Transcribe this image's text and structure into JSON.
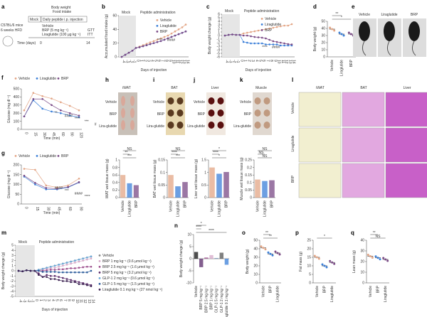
{
  "colors": {
    "vehicle": "#e3a585",
    "liraglutide": "#3b7fd8",
    "brp": "#7a4a86",
    "mock_shade": "#e6e6e6"
  },
  "panel_a": {
    "letter": "a",
    "mouse": "C57BL/6 mice",
    "diet": "6 weeks HFD",
    "measures": "Body weight",
    "measures2": "Food intake",
    "mock": "Mock",
    "injection": "Daily peptide i.p. injection",
    "g1": "Vehicle",
    "g2": "BRP (5 mg kg⁻¹)",
    "g3": "Liraglutide (100 µg kg⁻¹)",
    "tests1": "GTT",
    "tests2": "ITT",
    "time_label": "Time (days)",
    "t0": "0",
    "t14": "14"
  },
  "panel_e": {
    "letter": "e",
    "labels": [
      "Vehicle",
      "Liraglutide",
      "BRP"
    ]
  },
  "panel_h": {
    "letter": "h",
    "title": "iWAT",
    "rows": [
      "Vehicle",
      "BRP",
      "Lira-glutide"
    ]
  },
  "panel_i": {
    "letter": "i",
    "title": "BAT",
    "rows": [
      "Vehicle",
      "BRP",
      "Lira-glutide"
    ]
  },
  "panel_j": {
    "letter": "j",
    "title": "Liver",
    "rows": [
      "Vehicle",
      "BRP",
      "Lira-glutide"
    ]
  },
  "panel_k": {
    "letter": "k",
    "title": "Muscle",
    "rows": [
      "Vehicle",
      "BRP",
      "Lira-glutide"
    ]
  },
  "panel_l": {
    "letter": "l",
    "cols": [
      "iWAT",
      "BAT",
      "Liver"
    ],
    "rows": [
      "Vehicle",
      "Liraglutide",
      "BRP"
    ]
  },
  "chart_data": [
    {
      "id": "b",
      "letter": "b",
      "type": "line",
      "xlabel": "Days of injection",
      "ylabel": "Accumulated food intake (g)",
      "ylim": [
        0,
        60
      ],
      "yticks": [
        0,
        20,
        40,
        60
      ],
      "x": [
        -4,
        -3,
        -2,
        -1,
        0,
        1,
        2,
        3,
        4,
        5,
        6,
        7,
        8,
        9,
        10,
        11,
        12,
        13,
        14
      ],
      "mock_label": "Mock",
      "treat_label": "Peptide administration",
      "annotations": [
        "****",
        "####"
      ],
      "series": [
        {
          "name": "Vehicle",
          "key": "vehicle",
          "values": [
            0,
            3,
            6,
            9,
            13,
            15,
            17,
            19,
            21,
            23,
            25,
            27,
            29,
            31,
            34,
            37,
            40,
            43,
            47
          ]
        },
        {
          "name": "Liraglutide",
          "key": "liraglutide",
          "values": [
            0,
            3,
            6,
            9,
            13,
            14,
            15.5,
            17,
            18.5,
            20,
            21.5,
            23,
            25,
            27,
            29,
            31,
            33,
            35,
            37
          ]
        },
        {
          "name": "BRP",
          "key": "brp",
          "values": [
            0,
            3,
            6,
            9,
            13,
            14,
            15.5,
            17,
            18.5,
            20,
            21.5,
            23,
            25,
            27,
            29,
            31,
            33,
            35,
            37
          ]
        }
      ]
    },
    {
      "id": "c",
      "letter": "c",
      "type": "line",
      "xlabel": "Days of injection",
      "ylabel": "Body weight change (g)",
      "ylim": [
        -6,
        6
      ],
      "yticks": [
        -6,
        -5,
        -4,
        -3,
        -2,
        -1,
        0,
        1,
        2,
        3,
        4,
        5,
        6
      ],
      "x": [
        -4,
        -3,
        -2,
        -1,
        0,
        1,
        2,
        3,
        4,
        5,
        6,
        7,
        8,
        9,
        10,
        11,
        12,
        13,
        14
      ],
      "mock_label": "Mock",
      "treat_label": "Peptide administration",
      "annotations": [
        "****",
        "####"
      ],
      "series": [
        {
          "name": "Vehicle",
          "key": "vehicle",
          "values": [
            0,
            0.2,
            0.3,
            0.2,
            0.2,
            0.6,
            0.8,
            1.0,
            1.2,
            1.4,
            1.6,
            1.8,
            2.0,
            2.2,
            2.4,
            2.6,
            2.8,
            2.8,
            3.2
          ]
        },
        {
          "name": "Liraglutide",
          "key": "liraglutide",
          "values": [
            0,
            0.2,
            0.3,
            0.2,
            0.2,
            -1.8,
            -2.0,
            -2.2,
            -2.2,
            -2.2,
            -2.2,
            -2.5,
            -2.5,
            -2.5,
            -2.5,
            -2.8,
            -2.8,
            -2.8,
            -2.8
          ]
        },
        {
          "name": "BRP",
          "key": "brp",
          "values": [
            0,
            0.2,
            0.3,
            0.2,
            0.2,
            0,
            0,
            -0.2,
            -0.4,
            -0.5,
            -0.6,
            -0.8,
            -1.2,
            -1.6,
            -1.8,
            -2.0,
            -2.2,
            -2.4,
            -2.5
          ]
        }
      ]
    },
    {
      "id": "d",
      "letter": "d",
      "type": "scatter",
      "ylabel": "Body weight (g)",
      "ylim": [
        0,
        50
      ],
      "yticks": [
        0,
        10,
        20,
        30,
        40,
        50
      ],
      "categories": [
        "Vehicle",
        "Liraglutide",
        "BRP"
      ],
      "keys": [
        "vehicle",
        "liraglutide",
        "brp"
      ],
      "values": [
        39,
        32,
        32
      ],
      "annotations": [
        "*",
        "**"
      ]
    },
    {
      "id": "f",
      "letter": "f",
      "type": "line",
      "xlabel": "Time (min)",
      "ylabel": "Glucose (mg dl⁻¹)",
      "ylim": [
        0,
        500
      ],
      "yticks": [
        0,
        100,
        200,
        300,
        400,
        500
      ],
      "x": [
        0,
        15,
        30,
        45,
        60,
        90,
        120
      ],
      "annotations": [
        "**",
        "####",
        "****",
        "***",
        "#"
      ],
      "series": [
        {
          "name": "Vehicle",
          "key": "vehicle",
          "values": [
            235,
            450,
            410,
            380,
            335,
            290,
            235
          ]
        },
        {
          "name": "Liraglutide",
          "key": "liraglutide",
          "values": [
            160,
            360,
            255,
            220,
            200,
            170,
            150
          ]
        },
        {
          "name": "BRP",
          "key": "brp",
          "values": [
            160,
            375,
            375,
            300,
            235,
            200,
            170
          ]
        }
      ]
    },
    {
      "id": "g",
      "letter": "g",
      "type": "line",
      "xlabel": "Time (min)",
      "ylabel": "Glucose (mg dl⁻¹)",
      "ylim": [
        0,
        200
      ],
      "yticks": [
        0,
        50,
        100,
        150,
        200
      ],
      "x": [
        0,
        15,
        30,
        45,
        60,
        90
      ],
      "annotations": [
        "####",
        "***",
        "####",
        "****"
      ],
      "series": [
        {
          "name": "Vehicle",
          "key": "vehicle",
          "values": [
            180,
            175,
            95,
            85,
            95,
            130
          ]
        },
        {
          "name": "Liraglutide",
          "key": "liraglutide",
          "values": [
            140,
            100,
            75,
            75,
            85,
            110
          ]
        },
        {
          "name": "BRP",
          "key": "brp",
          "values": [
            145,
            108,
            82,
            78,
            87,
            112
          ]
        }
      ]
    },
    {
      "id": "h",
      "type": "bar",
      "ylabel": "iWAT wet tissue mass (g)",
      "ylim": [
        0,
        1
      ],
      "yticks": [
        0,
        0.2,
        0.4,
        0.6,
        0.8,
        1.0
      ],
      "categories": [
        "Vehicle",
        "Liraglutide",
        "BRP"
      ],
      "keys": [
        "vehicle",
        "liraglutide",
        "brp"
      ],
      "values": [
        0.6,
        0.38,
        0.33
      ],
      "annotations": [
        "***",
        "**",
        "NS"
      ]
    },
    {
      "id": "i",
      "type": "bar",
      "ylabel": "BAT wet tissue mass (g)",
      "ylim": [
        0,
        0.15
      ],
      "yticks": [
        0,
        0.05,
        0.1,
        0.15
      ],
      "categories": [
        "Vehicle",
        "Liraglutide",
        "BRP"
      ],
      "keys": [
        "vehicle",
        "liraglutide",
        "brp"
      ],
      "values": [
        0.09,
        0.045,
        0.062
      ],
      "annotations": [
        "***",
        "****",
        "NS"
      ]
    },
    {
      "id": "j",
      "type": "bar",
      "ylabel": "Liver wet tissue mass (g)",
      "ylim": [
        0,
        1.5
      ],
      "yticks": [
        0,
        0.5,
        1.0,
        1.5
      ],
      "categories": [
        "Vehicle",
        "Liraglutide",
        "BRP"
      ],
      "keys": [
        "vehicle",
        "liraglutide",
        "brp"
      ],
      "values": [
        1.2,
        0.95,
        1.02
      ],
      "annotations": [
        "*",
        "****",
        "*"
      ]
    },
    {
      "id": "k",
      "type": "bar",
      "ylabel": "Muscle wet tissue mass (g)",
      "ylim": [
        0,
        0.25
      ],
      "yticks": [
        0,
        0.05,
        0.1,
        0.15,
        0.2,
        0.25
      ],
      "categories": [
        "Vehicle",
        "Liraglutide",
        "BRP"
      ],
      "keys": [
        "vehicle",
        "liraglutide",
        "brp"
      ],
      "values": [
        0.12,
        0.11,
        0.115
      ],
      "annotations": [
        "NS",
        "NS",
        "NS"
      ]
    },
    {
      "id": "m",
      "letter": "m",
      "type": "line",
      "xlabel": "Days of injection",
      "ylabel": "Body weight change (g)",
      "ylim": [
        -5,
        5
      ],
      "yticks": [
        -5,
        -4,
        -3,
        -2,
        -1,
        0,
        1,
        2,
        3,
        4,
        5
      ],
      "x": [
        -4,
        -3,
        -2,
        -1,
        0,
        1,
        2,
        3,
        4,
        5,
        6,
        7,
        8,
        9,
        10,
        11,
        12,
        13,
        14
      ],
      "mock_label": "Mock",
      "treat_label": "Peptide administration",
      "series": [
        {
          "name": "Vehicle",
          "color": "#888888",
          "values": [
            0,
            -0.1,
            0.1,
            0,
            0,
            0.2,
            0.4,
            0.6,
            0.8,
            1.0,
            1.2,
            1.4,
            1.6,
            1.8,
            2.0,
            2.2,
            2.4,
            2.6,
            2.8
          ]
        },
        {
          "name": "BRP 1 mg kg⁻¹ (0.6 µmol kg⁻¹)",
          "color": "#d6a8c8",
          "values": [
            0,
            -0.1,
            0.1,
            0,
            0,
            0.1,
            0.2,
            0.4,
            0.5,
            0.6,
            0.8,
            1.0,
            1.2,
            1.4,
            1.6,
            1.8,
            2.0,
            2.2,
            2.4
          ]
        },
        {
          "name": "BRP 2.5 mg kg⁻¹ (1.6 µmol kg⁻¹)",
          "color": "#9a4a8a",
          "values": [
            0,
            -0.1,
            0.1,
            0,
            0,
            0,
            0,
            0.1,
            0.2,
            0.2,
            0.3,
            0.3,
            0.4,
            0.5,
            0.5,
            0.6,
            0.7,
            0.8,
            0.8
          ]
        },
        {
          "name": "BRP 5 mg kg⁻¹ (3.2 µmol kg⁻¹)",
          "color": "#5a2a6a",
          "values": [
            0,
            -0.1,
            0.1,
            0,
            0,
            -0.5,
            -1.2,
            -0.8,
            -1.0,
            -1.0,
            -1.2,
            -1.4,
            -1.6,
            -1.8,
            -2.0,
            -2.2,
            -2.4,
            -2.6,
            -2.8
          ]
        },
        {
          "name": "GLP-1 2 mg kg⁻¹ (0.6 µmol kg⁻¹)",
          "color": "#6aa8d8",
          "values": [
            0,
            -0.1,
            0.1,
            0,
            0,
            0.2,
            0.4,
            0.6,
            0.8,
            1.0,
            1.2,
            1.4,
            1.6,
            1.8,
            2.0,
            2.2,
            2.4,
            2.6,
            2.8
          ]
        },
        {
          "name": "GLP-1 5 mg kg⁻¹ (1.5 µmol kg⁻¹)",
          "color": "#2a5a9a",
          "values": [
            0,
            -0.1,
            0.1,
            0,
            0,
            0,
            -0.2,
            -0.2,
            -0.2,
            -0.2,
            -0.3,
            -0.3,
            -0.3,
            -0.3,
            -0.3,
            -0.3,
            -0.3,
            -0.3,
            0
          ]
        },
        {
          "name": "Liraglutide 0.1 mg kg⁻¹ (27 nmol kg⁻¹)",
          "color": "#3a2050",
          "values": [
            0,
            -0.1,
            0.1,
            0,
            0,
            -0.8,
            -1.2,
            -1.2,
            -1.6,
            -1.6,
            -1.8,
            -2.0,
            -2.0,
            -2.2,
            -2.2,
            -2.6,
            -2.6,
            -2.8,
            -3.0
          ]
        }
      ]
    },
    {
      "id": "n",
      "letter": "n",
      "type": "bar",
      "ylabel": "Body weight change (g)",
      "ylim": [
        -10,
        10
      ],
      "yticks": [
        -10,
        -5,
        0,
        5,
        10
      ],
      "categories": [
        "Vehicle",
        "BRP 5 mg kg⁻¹",
        "BRP 2.5 mg kg⁻¹",
        "BRP 1 mg kg⁻¹",
        "GLP-1 5 mg kg⁻¹",
        "GLP-1 2 mg kg⁻¹",
        "Liraglutide 0.1 mg kg⁻¹"
      ],
      "colors": [
        "#111111",
        "#5a2a6a",
        "#9a4a8a",
        "#d6a8c8",
        "#2a5a9a",
        "#555555",
        "#3b7fd8"
      ],
      "values": [
        2.8,
        -3.5,
        0.5,
        1.5,
        0.2,
        2.5,
        -2.5
      ],
      "annotations": [
        "****",
        "****",
        "*"
      ]
    },
    {
      "id": "o",
      "letter": "o",
      "type": "scatter",
      "ylabel": "Body weight (g)",
      "ylim": [
        0,
        50
      ],
      "yticks": [
        0,
        10,
        20,
        30,
        40,
        50
      ],
      "categories": [
        "Vehicle",
        "BRP",
        "Liraglutide"
      ],
      "keys": [
        "vehicle",
        "liraglutide",
        "brp"
      ],
      "values": [
        41,
        34,
        35
      ],
      "annotations": [
        "**",
        "**"
      ]
    },
    {
      "id": "p",
      "letter": "p",
      "type": "scatter",
      "ylabel": "Fat mass (g)",
      "ylim": [
        0,
        25
      ],
      "yticks": [
        0,
        5,
        10,
        15,
        20,
        25
      ],
      "categories": [
        "Vehicle",
        "BRP",
        "Liraglutide"
      ],
      "keys": [
        "vehicle",
        "liraglutide",
        "brp"
      ],
      "values": [
        15,
        10,
        12
      ],
      "annotations": [
        "*"
      ]
    },
    {
      "id": "q",
      "letter": "q",
      "type": "scatter",
      "ylabel": "Lean mass (g)",
      "ylim": [
        0,
        40
      ],
      "yticks": [
        0,
        10,
        20,
        30,
        40
      ],
      "categories": [
        "Vehicle",
        "BRP",
        "Liraglutide"
      ],
      "keys": [
        "vehicle",
        "liraglutide",
        "brp"
      ],
      "values": [
        25,
        23.5,
        22
      ],
      "annotations": [
        "NS",
        "**"
      ]
    }
  ]
}
